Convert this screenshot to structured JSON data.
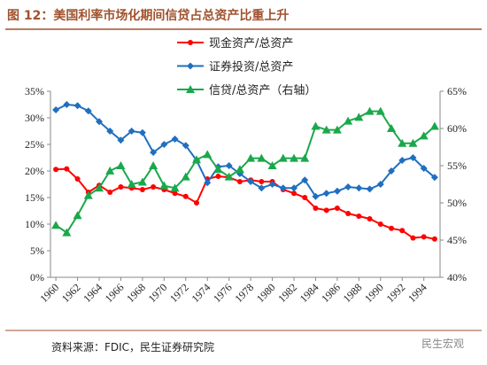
{
  "chart_data": {
    "type": "line",
    "title": "图 12：美国利率市场化期间信贷占总资产比重上升",
    "source": "资料来源：FDIC，民生证券研究院",
    "watermark": "民生宏观",
    "x": [
      1960,
      1961,
      1962,
      1963,
      1964,
      1965,
      1966,
      1967,
      1968,
      1969,
      1970,
      1971,
      1972,
      1973,
      1974,
      1975,
      1976,
      1977,
      1978,
      1979,
      1980,
      1981,
      1982,
      1983,
      1984,
      1985,
      1986,
      1987,
      1988,
      1989,
      1990,
      1991,
      1992,
      1993,
      1994,
      1995
    ],
    "xlim": [
      1959.5,
      1995.5
    ],
    "xticks": [
      1960,
      1962,
      1964,
      1966,
      1968,
      1970,
      1972,
      1974,
      1976,
      1978,
      1980,
      1982,
      1984,
      1986,
      1988,
      1990,
      1992,
      1994
    ],
    "ylim": [
      0,
      35
    ],
    "yticks": [
      {
        "value": 0,
        "label": "0%"
      },
      {
        "value": 5,
        "label": "5%"
      },
      {
        "value": 10,
        "label": "10%"
      },
      {
        "value": 15,
        "label": "15%"
      },
      {
        "value": 20,
        "label": "20%"
      },
      {
        "value": 25,
        "label": "25%"
      },
      {
        "value": 30,
        "label": "30%"
      },
      {
        "value": 35,
        "label": "35%"
      }
    ],
    "y2lim": [
      40,
      65
    ],
    "y2ticks": [
      {
        "value": 40,
        "label": "40%"
      },
      {
        "value": 45,
        "label": "45%"
      },
      {
        "value": 50,
        "label": "50%"
      },
      {
        "value": 55,
        "label": "55%"
      },
      {
        "value": 60,
        "label": "60%"
      },
      {
        "value": 65,
        "label": "65%"
      }
    ],
    "series": [
      {
        "name": "现金资产/总资产",
        "color": "#ff0000",
        "marker": "circle",
        "values": [
          20.3,
          20.4,
          18.5,
          16.0,
          17.3,
          16.0,
          17.0,
          16.8,
          16.5,
          17.0,
          16.5,
          15.8,
          15.2,
          14.0,
          18.5,
          19.0,
          18.8,
          18.0,
          18.3,
          18.0,
          18.0,
          16.5,
          15.8,
          15.0,
          13.0,
          12.6,
          13.0,
          12.0,
          11.5,
          11.0,
          10.0,
          9.2,
          8.8,
          7.4,
          7.6,
          7.2
        ]
      },
      {
        "name": "证券投资/总资产",
        "color": "#1f6fc0",
        "marker": "diamond",
        "values": [
          31.5,
          32.5,
          32.3,
          31.3,
          29.3,
          27.5,
          25.8,
          27.5,
          27.2,
          23.5,
          25.0,
          26.0,
          24.8,
          22.0,
          17.8,
          20.8,
          21.0,
          19.5,
          18.0,
          16.8,
          17.5,
          16.8,
          16.8,
          18.3,
          15.2,
          15.8,
          16.2,
          17.0,
          16.8,
          16.6,
          17.5,
          20.0,
          22.0,
          22.5,
          20.5,
          18.8
        ]
      },
      {
        "name": "信贷/总资产（右轴）",
        "color": "#1aa84a",
        "marker": "triangle",
        "axis": "y2",
        "values": [
          47.0,
          46.0,
          48.3,
          51.0,
          52.0,
          54.3,
          55.0,
          52.5,
          52.8,
          55.0,
          52.3,
          52.0,
          53.5,
          55.8,
          56.5,
          54.5,
          53.5,
          54.5,
          56.0,
          56.0,
          55.0,
          56.0,
          56.0,
          56.0,
          60.3,
          59.8,
          59.8,
          61.0,
          61.5,
          62.3,
          62.3,
          60.0,
          58.0,
          58.0,
          59.0,
          60.3
        ]
      }
    ]
  }
}
